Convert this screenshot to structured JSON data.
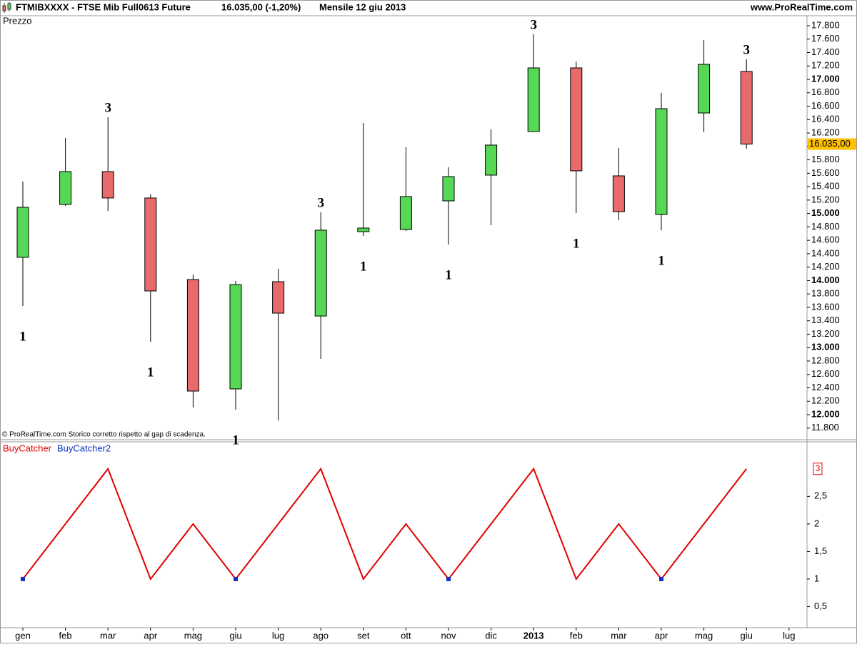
{
  "header": {
    "symbol": "FTMIBXXXX - FTSE Mib Full0613 Future",
    "quote": "16.035,00 (-1,20%)",
    "period": "Mensile  12 giu 2013",
    "source": "www.ProRealTime.com"
  },
  "chart_data": [
    {
      "type": "candlestick",
      "panel_label": "Prezzo",
      "footnote": "© ProRealTime.com Storico corretto rispetto al gap di scadenza.",
      "up_color": "#56d856",
      "down_color": "#e86a6a",
      "open": [
        14346,
        15135,
        15625,
        15231,
        14015,
        12384,
        13983,
        13471,
        14729,
        14761,
        15188,
        15572,
        16222,
        17171,
        15561,
        14985,
        16499,
        17118,
        null
      ],
      "high": [
        15476,
        16126,
        16435,
        15284,
        14090,
        13994,
        14175,
        15017,
        16350,
        15988,
        15689,
        16254,
        17672,
        17267,
        15977,
        16798,
        17587,
        17299,
        null
      ],
      "low": [
        13621,
        15113,
        15039,
        13088,
        12107,
        12075,
        11915,
        12832,
        14666,
        14740,
        14538,
        14825,
        16222,
        15007,
        14900,
        14751,
        16211,
        15966,
        null
      ],
      "close": [
        15092,
        15625,
        15231,
        13845,
        12352,
        13940,
        13514,
        14751,
        14783,
        15252,
        15550,
        16020,
        17171,
        15636,
        15028,
        16563,
        17224,
        16035,
        null
      ],
      "candle_labels": [
        "1",
        null,
        "3",
        "1",
        null,
        "1",
        null,
        "3",
        "1",
        null,
        "1",
        null,
        "3",
        "1",
        null,
        "1",
        null,
        "3",
        null
      ],
      "last_price_label": "16.035,00",
      "ylim": [
        11627,
        17949
      ],
      "yticks": [
        {
          "value": 11800,
          "label": "11.800"
        },
        {
          "value": 12000,
          "label": "12.000"
        },
        {
          "value": 12200,
          "label": "12.200"
        },
        {
          "value": 12400,
          "label": "12.400"
        },
        {
          "value": 12600,
          "label": "12.600"
        },
        {
          "value": 12800,
          "label": "12.800"
        },
        {
          "value": 13000,
          "label": "13.000"
        },
        {
          "value": 13200,
          "label": "13.200"
        },
        {
          "value": 13400,
          "label": "13.400"
        },
        {
          "value": 13600,
          "label": "13.600"
        },
        {
          "value": 13800,
          "label": "13.800"
        },
        {
          "value": 14000,
          "label": "14.000"
        },
        {
          "value": 14200,
          "label": "14.200"
        },
        {
          "value": 14400,
          "label": "14.400"
        },
        {
          "value": 14600,
          "label": "14.600"
        },
        {
          "value": 14800,
          "label": "14.800"
        },
        {
          "value": 15000,
          "label": "15.000"
        },
        {
          "value": 15200,
          "label": "15.200"
        },
        {
          "value": 15400,
          "label": "15.400"
        },
        {
          "value": 15600,
          "label": "15.600"
        },
        {
          "value": 15800,
          "label": "15.800"
        },
        {
          "value": 16000,
          "label": "16.000"
        },
        {
          "value": 16200,
          "label": "16.200"
        },
        {
          "value": 16400,
          "label": "16.400"
        },
        {
          "value": 16600,
          "label": "16.600"
        },
        {
          "value": 16800,
          "label": "16.800"
        },
        {
          "value": 17000,
          "label": "17.000"
        },
        {
          "value": 17200,
          "label": "17.200"
        },
        {
          "value": 17400,
          "label": "17.400"
        },
        {
          "value": 17600,
          "label": "17.600"
        },
        {
          "value": 17800,
          "label": "17.800"
        }
      ]
    },
    {
      "type": "line",
      "categories": [
        "gen",
        "feb",
        "mar",
        "apr",
        "mag",
        "giu",
        "lug",
        "ago",
        "set",
        "ott",
        "nov",
        "dic",
        "2013",
        "feb",
        "mar",
        "apr",
        "mag",
        "giu",
        "lug"
      ],
      "series": [
        {
          "name": "BuyCatcher",
          "color": "#e00000",
          "values": [
            1,
            2,
            3,
            1,
            2,
            1,
            2,
            3,
            1,
            2,
            1,
            2,
            3,
            1,
            2,
            1,
            2,
            3,
            null
          ]
        },
        {
          "name": "BuyCatcher2",
          "color": "#1030c0",
          "values": [
            1,
            null,
            null,
            null,
            null,
            1,
            null,
            null,
            null,
            null,
            1,
            null,
            null,
            null,
            null,
            1,
            null,
            null,
            null
          ]
        }
      ],
      "last_value_label": "3",
      "ylim": [
        0.117,
        3.49
      ],
      "yticks": [
        {
          "value": 0.5,
          "label": "0,5"
        },
        1,
        {
          "value": 1.5,
          "label": "1,5"
        },
        2,
        {
          "value": 2.5,
          "label": "2,5"
        }
      ]
    }
  ]
}
